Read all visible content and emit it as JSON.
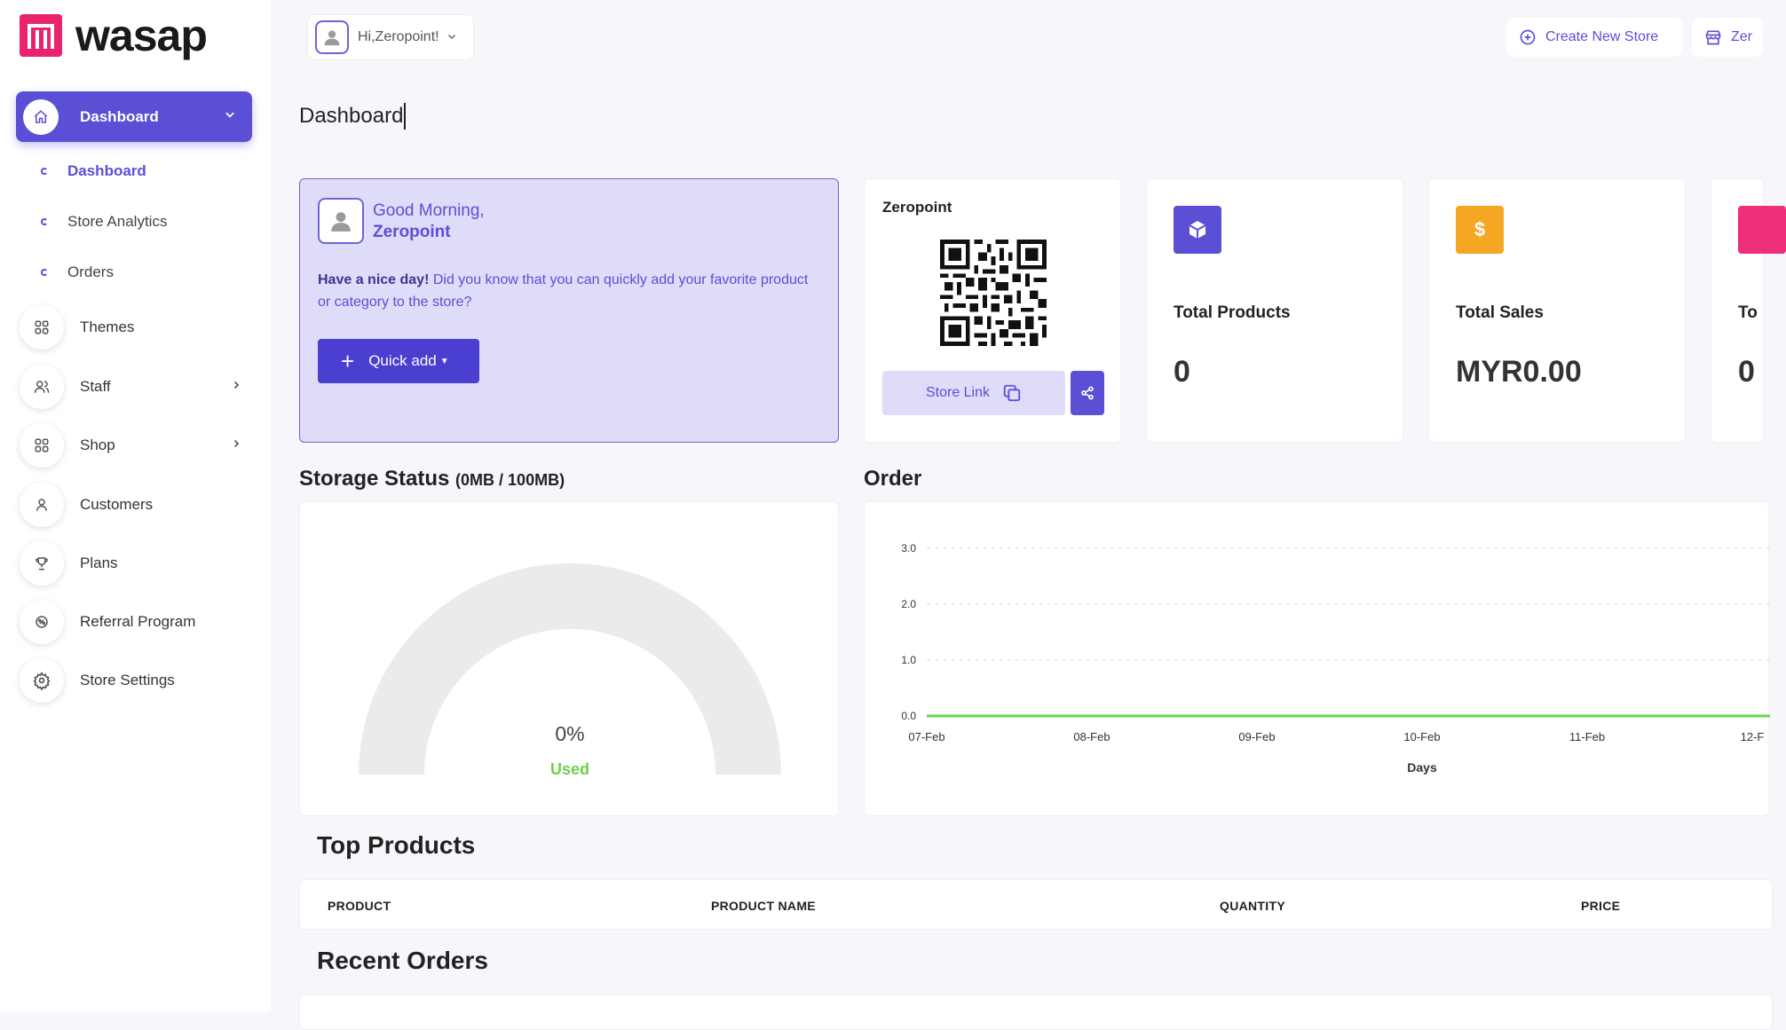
{
  "brand": {
    "name": "wasap",
    "logo_color": "#e8246e"
  },
  "accent": "#5b4fd6",
  "header": {
    "greeting": "Hi,Zeropoint!",
    "create_store": "Create New Store",
    "store_button": "Zer"
  },
  "page_title": "Dashboard",
  "sidebar": {
    "active": {
      "label": "Dashboard",
      "icon": "home-icon"
    },
    "sub_items": [
      {
        "label": "Dashboard"
      },
      {
        "label": "Store Analytics"
      },
      {
        "label": "Orders"
      }
    ],
    "items": [
      {
        "label": "Themes",
        "icon": "grid-icon"
      },
      {
        "label": "Staff",
        "icon": "users-icon"
      },
      {
        "label": "Shop",
        "icon": "grid-icon"
      },
      {
        "label": "Customers",
        "icon": "user-icon"
      },
      {
        "label": "Plans",
        "icon": "trophy-icon"
      },
      {
        "label": "Referral Program",
        "icon": "referral-icon"
      },
      {
        "label": "Store Settings",
        "icon": "gear-icon"
      }
    ]
  },
  "greeting_card": {
    "line1": "Good Morning,",
    "line2": "Zeropoint",
    "bold": "Have a nice day!",
    "message": " Did you know that you can quickly add your favorite product or category to the store?",
    "quick_add": "Quick add"
  },
  "qr_card": {
    "title": "Zeropoint",
    "store_link": "Store Link"
  },
  "stats": [
    {
      "label": "Total Products",
      "value": "0",
      "color": "#5b4fd6"
    },
    {
      "label": "Total Sales",
      "value": "MYR0.00",
      "color": "#f5a623"
    },
    {
      "label": "To",
      "value": "0",
      "color": "#ef2f7a"
    }
  ],
  "storage": {
    "title": "Storage Status",
    "usage": "(0MB / 100MB)",
    "percent": "0%",
    "used_label": "Used",
    "used_fraction": 0
  },
  "order_section": {
    "title": "Order"
  },
  "chart_data": {
    "type": "line",
    "title": "Order",
    "x": [
      "07-Feb",
      "08-Feb",
      "09-Feb",
      "10-Feb",
      "11-Feb",
      "12-F"
    ],
    "series": [
      {
        "values": [
          0,
          0,
          0,
          0,
          0,
          0
        ],
        "color": "#6bd14a"
      }
    ],
    "yticks": [
      "3.0",
      "2.0",
      "1.0",
      "0.0"
    ],
    "ylim": [
      0,
      3
    ],
    "xlabel": "Days",
    "ylabel": "",
    "grid": true
  },
  "top_products": {
    "title": "Top Products",
    "columns": [
      "PRODUCT",
      "PRODUCT NAME",
      "QUANTITY",
      "PRICE"
    ]
  },
  "recent_orders": {
    "title": "Recent Orders"
  }
}
